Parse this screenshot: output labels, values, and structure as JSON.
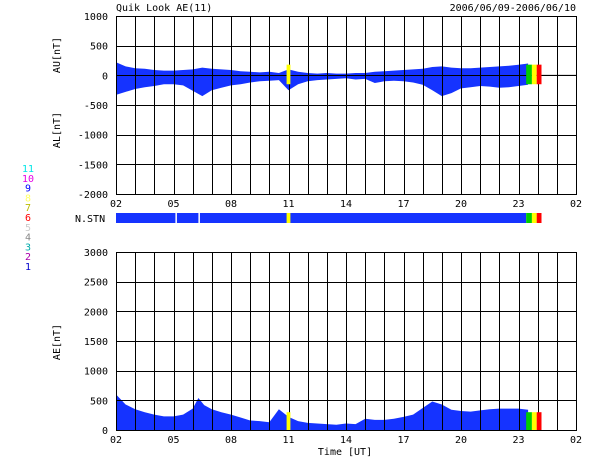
{
  "header": {
    "title": "Quik Look AE(11)",
    "date_range": "2006/06/09-2006/06/10"
  },
  "colors": {
    "au_al_fill": "#1533ff",
    "ae_fill": "#1533ff",
    "grid": "#000000",
    "station_bar": "#1533ff",
    "marker_yellow": "#ffff00",
    "marker_green": "#00cc00",
    "marker_red": "#ff0000"
  },
  "station_legend": {
    "title": "N.STN",
    "items": [
      {
        "label": "11",
        "color": "#00e5e5"
      },
      {
        "label": "10",
        "color": "#e600e6"
      },
      {
        "label": "9",
        "color": "#0000ff"
      },
      {
        "label": "8",
        "color": "#ffff66"
      },
      {
        "label": "7",
        "color": "#bbbb00"
      },
      {
        "label": "6",
        "color": "#ff0000"
      },
      {
        "label": "5",
        "color": "#cccccc"
      },
      {
        "label": "4",
        "color": "#888888"
      },
      {
        "label": "3",
        "color": "#00aaaa"
      },
      {
        "label": "2",
        "color": "#aa00aa"
      },
      {
        "label": "1",
        "color": "#0000cc"
      }
    ]
  },
  "chart_data": [
    {
      "type": "area",
      "title": "Quik Look AE(11)",
      "ylabel_upper": "AU[nT]",
      "ylabel_lower": "AL[nT]",
      "ylim": [
        -2000,
        1000
      ],
      "yticks": [
        1000,
        500,
        0,
        -500,
        -1000,
        -1500,
        -2000
      ],
      "xlim": [
        2,
        26
      ],
      "xtick_labels": [
        "02",
        "05",
        "08",
        "11",
        "14",
        "17",
        "20",
        "23",
        "02"
      ],
      "xtick_hours": [
        2,
        5,
        8,
        11,
        14,
        17,
        20,
        23,
        26
      ],
      "grid": true,
      "series": [
        {
          "hours": [
            2,
            2.5,
            3,
            3.5,
            4,
            4.5,
            5,
            5.5,
            6,
            6.5,
            7,
            7.5,
            8,
            8.5,
            9,
            9.5,
            10,
            10.5,
            11,
            11.5,
            12,
            12.5,
            13,
            13.5,
            14,
            14.5,
            15,
            15.5,
            16,
            16.5,
            17,
            17.5,
            18,
            18.5,
            19,
            19.5,
            20,
            20.5,
            21,
            21.5,
            22,
            22.5,
            23,
            23.5
          ],
          "au": [
            220,
            150,
            120,
            110,
            90,
            80,
            80,
            90,
            100,
            130,
            110,
            100,
            90,
            70,
            60,
            50,
            60,
            40,
            100,
            60,
            40,
            30,
            40,
            30,
            30,
            40,
            40,
            60,
            70,
            80,
            90,
            100,
            110,
            140,
            150,
            130,
            120,
            120,
            130,
            140,
            150,
            160,
            180,
            200
          ],
          "al": [
            -330,
            -280,
            -230,
            -200,
            -180,
            -150,
            -150,
            -170,
            -260,
            -350,
            -250,
            -210,
            -170,
            -150,
            -120,
            -100,
            -90,
            -80,
            -250,
            -150,
            -100,
            -80,
            -70,
            -60,
            -50,
            -70,
            -60,
            -130,
            -100,
            -90,
            -100,
            -120,
            -160,
            -250,
            -350,
            -300,
            -220,
            -200,
            -180,
            -190,
            -210,
            -200,
            -180,
            -160
          ]
        }
      ]
    },
    {
      "type": "bar",
      "title": "N.STN",
      "xlim": [
        2,
        26
      ],
      "segments": [
        {
          "start": 2,
          "end": 23.4,
          "color": "#1533ff"
        },
        {
          "start": 10.9,
          "end": 11.1,
          "color": "#ffff00"
        },
        {
          "start": 23.4,
          "end": 23.7,
          "color": "#00cc00"
        },
        {
          "start": 23.7,
          "end": 23.95,
          "color": "#ffff00"
        },
        {
          "start": 23.95,
          "end": 24.2,
          "color": "#ff0000"
        }
      ]
    },
    {
      "type": "area",
      "ylabel": "AE[nT]",
      "xlabel": "Time [UT]",
      "ylim": [
        0,
        3000
      ],
      "yticks": [
        3000,
        2500,
        2000,
        1500,
        1000,
        500,
        0
      ],
      "xlim": [
        2,
        26
      ],
      "xtick_labels": [
        "02",
        "05",
        "08",
        "11",
        "14",
        "17",
        "20",
        "23",
        "02"
      ],
      "xtick_hours": [
        2,
        5,
        8,
        11,
        14,
        17,
        20,
        23,
        26
      ],
      "grid": true,
      "series": [
        {
          "hours": [
            2,
            2.5,
            3,
            3.5,
            4,
            4.5,
            5,
            5.5,
            6,
            6.3,
            6.6,
            7,
            7.5,
            8,
            8.5,
            9,
            9.5,
            10,
            10.5,
            11,
            11.5,
            12,
            12.5,
            13,
            13.5,
            14,
            14.5,
            15,
            15.5,
            16,
            16.5,
            17,
            17.5,
            18,
            18.5,
            19,
            19.5,
            20,
            20.5,
            21,
            21.5,
            22,
            22.5,
            23,
            23.5
          ],
          "ae": [
            600,
            430,
            350,
            300,
            260,
            230,
            230,
            260,
            360,
            540,
            420,
            350,
            300,
            260,
            210,
            160,
            150,
            130,
            350,
            220,
            150,
            120,
            110,
            100,
            90,
            110,
            100,
            190,
            170,
            170,
            190,
            220,
            260,
            370,
            480,
            430,
            340,
            320,
            310,
            330,
            350,
            360,
            360,
            360,
            340
          ]
        }
      ]
    }
  ]
}
